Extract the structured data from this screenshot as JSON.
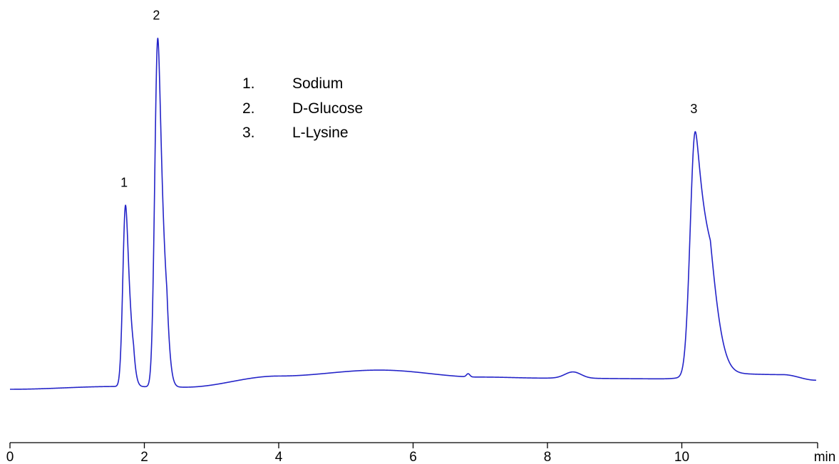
{
  "chart_data": {
    "type": "line",
    "title": "",
    "xlabel": "",
    "x_unit": "min",
    "ylabel": "",
    "xlim": [
      0,
      12
    ],
    "x_ticks": [
      0,
      2,
      4,
      6,
      8,
      10
    ],
    "grid": false,
    "line_color": "#2323c8",
    "series": [
      {
        "baseline": [
          [
            0,
            0.0
          ],
          [
            1.6,
            0.008
          ],
          [
            2.6,
            0.006
          ],
          [
            4.0,
            0.038
          ],
          [
            5.5,
            0.055
          ],
          [
            7.0,
            0.035
          ],
          [
            8.0,
            0.032
          ],
          [
            9.7,
            0.03
          ],
          [
            10.6,
            0.045
          ],
          [
            11.5,
            0.042
          ],
          [
            12.0,
            0.026
          ]
        ],
        "peaks": [
          {
            "label": "1",
            "rt": 1.72,
            "height": 0.52,
            "sigma": 0.04,
            "tail": 0.03
          },
          {
            "label": "2",
            "rt": 2.2,
            "height": 1.0,
            "sigma": 0.045,
            "tail": 0.04
          },
          {
            "label": "3",
            "rt": 10.2,
            "height": 0.7,
            "sigma": 0.075,
            "tail": 0.13
          }
        ],
        "minor_features": [
          {
            "rt": 6.82,
            "height": 0.009,
            "sigma": 0.025
          },
          {
            "rt": 8.38,
            "height": 0.018,
            "sigma": 0.12
          }
        ]
      }
    ],
    "legend": [
      {
        "number": "1.",
        "name": "Sodium"
      },
      {
        "number": "2.",
        "name": "D-Glucose"
      },
      {
        "number": "3.",
        "name": "L-Lysine"
      }
    ],
    "legend_position": "top-center"
  }
}
